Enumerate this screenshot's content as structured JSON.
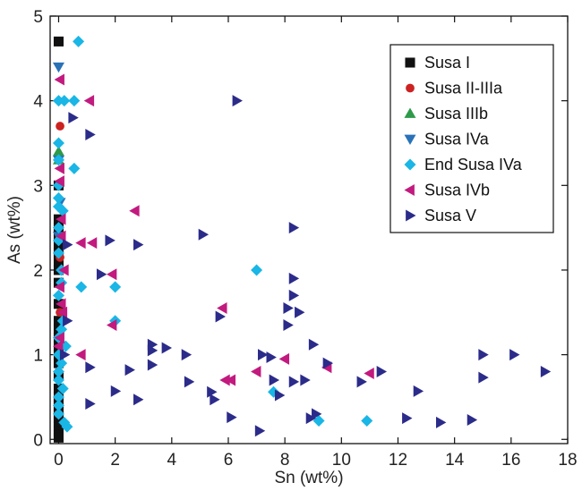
{
  "chart_data": {
    "type": "scatter",
    "xlabel": "Sn (wt%)",
    "ylabel": "As (wt%)",
    "xlim": [
      -0.3,
      18
    ],
    "ylim": [
      -0.05,
      5
    ],
    "xticks": [
      0,
      2,
      4,
      6,
      8,
      10,
      12,
      14,
      16,
      18
    ],
    "yticks": [
      0,
      1,
      2,
      3,
      4,
      5
    ],
    "grid": false,
    "legend_position": "top-right",
    "series": [
      {
        "name": "Susa I",
        "marker": "square",
        "color": "#111111",
        "points": [
          [
            0.0,
            4.7
          ],
          [
            0.0,
            3.0
          ],
          [
            0.0,
            2.6
          ],
          [
            0.0,
            2.5
          ],
          [
            0.0,
            2.4
          ],
          [
            0.0,
            2.3
          ],
          [
            0.0,
            2.2
          ],
          [
            0.0,
            2.1
          ],
          [
            0.0,
            2.0
          ],
          [
            0.0,
            1.85
          ],
          [
            0.0,
            1.6
          ],
          [
            0.0,
            1.4
          ],
          [
            0.0,
            1.3
          ],
          [
            0.0,
            1.2
          ],
          [
            0.0,
            1.1
          ],
          [
            0.0,
            1.0
          ],
          [
            0.0,
            0.9
          ],
          [
            0.0,
            0.75
          ],
          [
            0.0,
            0.6
          ],
          [
            0.0,
            0.5
          ],
          [
            0.0,
            0.45
          ],
          [
            0.0,
            0.4
          ],
          [
            0.0,
            0.35
          ],
          [
            0.0,
            0.3
          ],
          [
            0.0,
            0.25
          ],
          [
            0.0,
            0.2
          ],
          [
            0.0,
            0.15
          ],
          [
            0.0,
            0.1
          ],
          [
            0.0,
            0.05
          ],
          [
            0.0,
            0.02
          ]
        ]
      },
      {
        "name": "Susa II-IIIa",
        "marker": "circle",
        "color": "#cc2222",
        "points": [
          [
            0.05,
            3.7
          ],
          [
            0.05,
            2.15
          ],
          [
            0.05,
            1.5
          ],
          [
            0.0,
            0.8
          ],
          [
            0.0,
            0.5
          ],
          [
            0.0,
            0.3
          ]
        ]
      },
      {
        "name": "Susa IIIb",
        "marker": "triangle-up",
        "color": "#2e9a4a",
        "points": [
          [
            0.0,
            3.4
          ],
          [
            0.0,
            3.3
          ]
        ]
      },
      {
        "name": "Susa IVa",
        "marker": "triangle-down",
        "color": "#2a72b8",
        "points": [
          [
            0.0,
            4.4
          ],
          [
            0.0,
            3.3
          ],
          [
            0.05,
            2.8
          ],
          [
            0.0,
            2.4
          ]
        ]
      },
      {
        "name": "End Susa IVa",
        "marker": "diamond",
        "color": "#19b6e6",
        "points": [
          [
            0.7,
            4.7
          ],
          [
            0.2,
            4.0
          ],
          [
            0.55,
            4.0
          ],
          [
            0.0,
            4.0
          ],
          [
            0.0,
            3.5
          ],
          [
            0.0,
            3.3
          ],
          [
            0.55,
            3.2
          ],
          [
            0.0,
            3.0
          ],
          [
            0.0,
            2.85
          ],
          [
            0.0,
            2.75
          ],
          [
            0.15,
            2.7
          ],
          [
            0.0,
            2.5
          ],
          [
            0.0,
            2.35
          ],
          [
            0.0,
            2.2
          ],
          [
            0.1,
            2.0
          ],
          [
            0.1,
            1.85
          ],
          [
            0.0,
            1.7
          ],
          [
            0.8,
            1.8
          ],
          [
            2.0,
            1.8
          ],
          [
            2.0,
            1.4
          ],
          [
            0.15,
            1.4
          ],
          [
            0.1,
            1.3
          ],
          [
            0.0,
            1.2
          ],
          [
            0.25,
            1.1
          ],
          [
            0.0,
            1.0
          ],
          [
            0.1,
            0.9
          ],
          [
            0.0,
            0.8
          ],
          [
            0.0,
            0.7
          ],
          [
            0.15,
            0.6
          ],
          [
            0.0,
            0.5
          ],
          [
            0.0,
            0.4
          ],
          [
            0.0,
            0.3
          ],
          [
            0.2,
            0.2
          ],
          [
            0.3,
            0.15
          ],
          [
            7.0,
            2.0
          ],
          [
            7.6,
            0.56
          ],
          [
            9.2,
            0.22
          ],
          [
            10.9,
            0.22
          ]
        ]
      },
      {
        "name": "Susa IVb",
        "marker": "triangle-left",
        "color": "#c21a7e",
        "points": [
          [
            0.05,
            4.25
          ],
          [
            1.1,
            4.0
          ],
          [
            0.05,
            3.2
          ],
          [
            0.05,
            3.05
          ],
          [
            0.1,
            2.6
          ],
          [
            0.1,
            2.4
          ],
          [
            0.8,
            2.32
          ],
          [
            1.2,
            2.32
          ],
          [
            2.7,
            2.7
          ],
          [
            0.2,
            2.0
          ],
          [
            1.9,
            1.95
          ],
          [
            0.05,
            1.8
          ],
          [
            0.1,
            1.6
          ],
          [
            0.15,
            1.5
          ],
          [
            0.05,
            1.2
          ],
          [
            0.0,
            1.1
          ],
          [
            1.9,
            1.35
          ],
          [
            5.8,
            1.55
          ],
          [
            0.8,
            1.0
          ],
          [
            7.0,
            0.8
          ],
          [
            8.0,
            0.95
          ],
          [
            9.5,
            0.85
          ],
          [
            11.0,
            0.78
          ],
          [
            5.9,
            0.7
          ],
          [
            6.1,
            0.7
          ]
        ]
      },
      {
        "name": "Susa V",
        "marker": "triangle-right",
        "color": "#2b2b8a",
        "points": [
          [
            0.5,
            3.8
          ],
          [
            6.3,
            4.0
          ],
          [
            1.1,
            3.6
          ],
          [
            0.3,
            2.3
          ],
          [
            1.8,
            2.35
          ],
          [
            2.8,
            2.3
          ],
          [
            5.1,
            2.42
          ],
          [
            8.3,
            2.5
          ],
          [
            1.5,
            1.95
          ],
          [
            8.3,
            1.9
          ],
          [
            8.3,
            1.7
          ],
          [
            8.1,
            1.55
          ],
          [
            8.5,
            1.5
          ],
          [
            0.3,
            1.4
          ],
          [
            5.7,
            1.45
          ],
          [
            8.1,
            1.35
          ],
          [
            3.3,
            1.12
          ],
          [
            3.3,
            1.05
          ],
          [
            3.8,
            1.08
          ],
          [
            4.5,
            1.0
          ],
          [
            0.2,
            1.0
          ],
          [
            7.2,
            1.0
          ],
          [
            7.5,
            0.97
          ],
          [
            9.0,
            1.12
          ],
          [
            3.3,
            0.88
          ],
          [
            1.1,
            0.85
          ],
          [
            2.5,
            0.82
          ],
          [
            9.5,
            0.9
          ],
          [
            4.6,
            0.68
          ],
          [
            7.6,
            0.7
          ],
          [
            8.3,
            0.68
          ],
          [
            8.7,
            0.7
          ],
          [
            10.7,
            0.68
          ],
          [
            11.4,
            0.8
          ],
          [
            15.0,
            1.0
          ],
          [
            16.1,
            1.0
          ],
          [
            17.2,
            0.8
          ],
          [
            15.0,
            0.73
          ],
          [
            5.4,
            0.56
          ],
          [
            2.0,
            0.57
          ],
          [
            5.5,
            0.47
          ],
          [
            2.8,
            0.47
          ],
          [
            1.1,
            0.42
          ],
          [
            7.8,
            0.52
          ],
          [
            9.1,
            0.3
          ],
          [
            8.9,
            0.25
          ],
          [
            12.7,
            0.57
          ],
          [
            6.1,
            0.26
          ],
          [
            12.3,
            0.25
          ],
          [
            14.6,
            0.23
          ],
          [
            13.5,
            0.2
          ],
          [
            7.1,
            0.1
          ]
        ]
      }
    ]
  }
}
